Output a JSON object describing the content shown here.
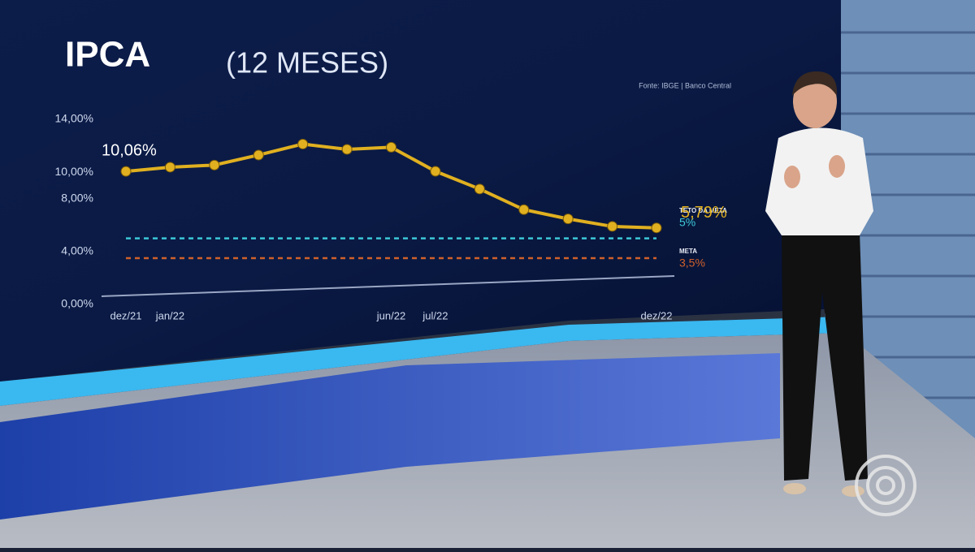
{
  "chart_data": {
    "type": "line",
    "title": "IPCA",
    "subtitle": "(12 MESES)",
    "source": "Fonte: IBGE | Banco Central",
    "x": [
      "dez/21",
      "jan/22",
      null,
      null,
      null,
      null,
      "jun/22",
      "jul/22",
      null,
      null,
      null,
      null,
      "dez/22"
    ],
    "series": [
      {
        "name": "IPCA",
        "color": "#e0b020",
        "values": [
          10.06,
          10.38,
          10.54,
          11.3,
          12.13,
          11.73,
          11.89,
          10.07,
          8.73,
          7.17,
          6.47,
          5.9,
          5.79
        ],
        "value_labels": [
          "10,06%",
          null,
          null,
          null,
          null,
          null,
          null,
          null,
          null,
          null,
          null,
          null,
          "5,79%"
        ]
      }
    ],
    "reference_lines": [
      {
        "name": "TETO DA META",
        "value": 5,
        "label": "5%",
        "color": "#3cc8d8"
      },
      {
        "name": "META",
        "value": 3.5,
        "label": "3,5%",
        "color": "#d0602a"
      }
    ],
    "ylim": [
      0,
      14
    ],
    "yticks": [
      {
        "value": 0,
        "label": "0,00%"
      },
      {
        "value": 4,
        "label": "4,00%"
      },
      {
        "value": 8,
        "label": "8,00%"
      },
      {
        "value": 10,
        "label": "10,00%"
      },
      {
        "value": 14,
        "label": "14,00%"
      }
    ]
  }
}
